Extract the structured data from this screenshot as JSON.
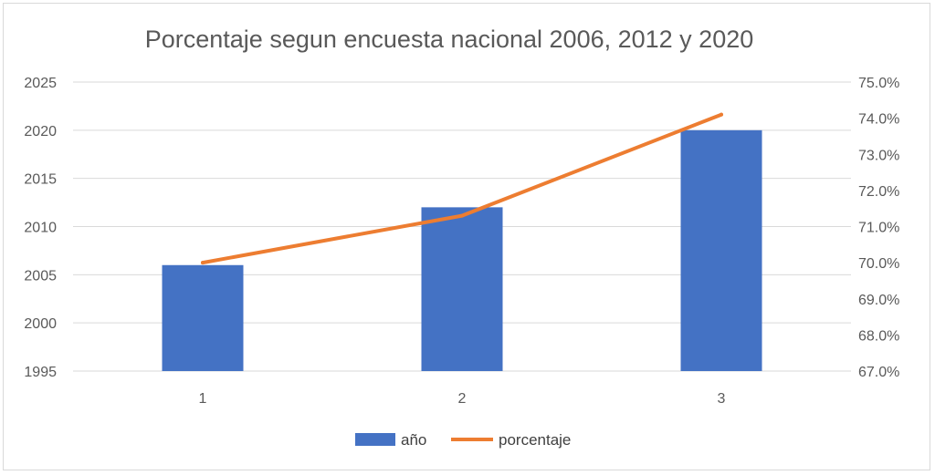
{
  "chart_data": {
    "type": "bar+line",
    "title": "Porcentaje segun encuesta nacional 2006, 2012 y 2020",
    "categories": [
      "1",
      "2",
      "3"
    ],
    "series": [
      {
        "name": "año",
        "type": "bar",
        "axis": "left",
        "values": [
          2006,
          2012,
          2020
        ],
        "color": "#4472C4"
      },
      {
        "name": "porcentaje",
        "type": "line",
        "axis": "right",
        "values": [
          70.0,
          71.3,
          74.1
        ],
        "color": "#ED7D31"
      }
    ],
    "y_left": {
      "min": 1995,
      "max": 2025,
      "ticks": [
        "1995",
        "2000",
        "2005",
        "2010",
        "2015",
        "2020",
        "2025"
      ]
    },
    "y_right": {
      "min": 67.0,
      "max": 75.0,
      "ticks": [
        "67.0%",
        "68.0%",
        "69.0%",
        "70.0%",
        "71.0%",
        "72.0%",
        "73.0%",
        "74.0%",
        "75.0%"
      ]
    },
    "grid": true,
    "legend_position": "bottom"
  }
}
